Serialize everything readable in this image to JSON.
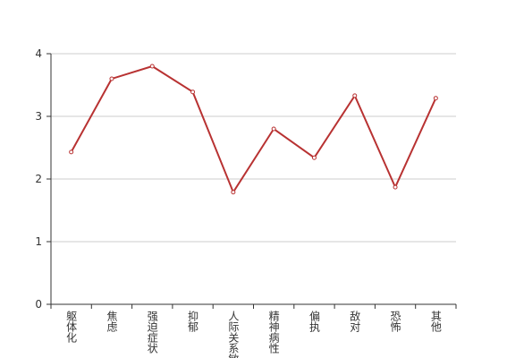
{
  "chart_data": {
    "type": "line",
    "categories": [
      "躯体化",
      "焦虑",
      "强迫症状",
      "抑郁",
      "人际关系敏感",
      "精神病性",
      "偏执",
      "敌对",
      "恐怖",
      "其他"
    ],
    "values": [
      2.43,
      3.6,
      3.8,
      3.39,
      1.79,
      2.8,
      2.34,
      3.33,
      1.87,
      3.29
    ],
    "color": "#b83232",
    "ylim": [
      0,
      4
    ],
    "yticks": [
      0,
      1,
      2,
      3,
      4
    ],
    "grid": true
  }
}
